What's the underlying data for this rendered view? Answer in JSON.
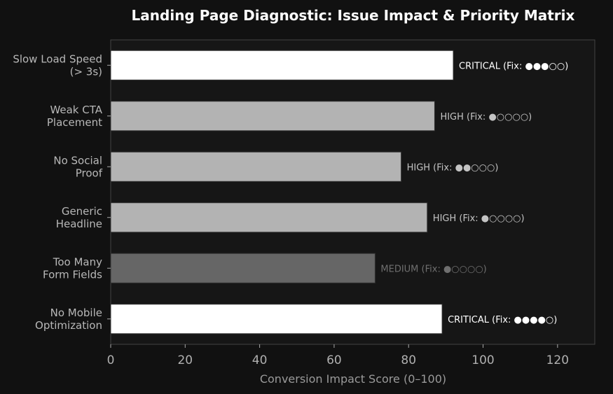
{
  "chart_data": {
    "type": "bar",
    "orientation": "horizontal",
    "title": "Landing Page Diagnostic: Issue Impact & Priority Matrix",
    "xlabel": "Conversion Impact Score (0–100)",
    "xlim": [
      0,
      130
    ],
    "xticks": [
      0,
      20,
      40,
      60,
      80,
      100,
      120
    ],
    "grid": false,
    "categories": [
      [
        "Slow Load Speed",
        "(> 3s)"
      ],
      [
        "Weak CTA",
        "Placement"
      ],
      [
        "No Social",
        "Proof"
      ],
      [
        "Generic",
        "Headline"
      ],
      [
        "Too Many",
        "Form Fields"
      ],
      [
        "No Mobile",
        "Optimization"
      ]
    ],
    "values": [
      92,
      87,
      78,
      85,
      71,
      89
    ],
    "priority": [
      "CRITICAL",
      "HIGH",
      "HIGH",
      "HIGH",
      "MEDIUM",
      "CRITICAL"
    ],
    "fix_effort": [
      3,
      1,
      2,
      1,
      1,
      4
    ],
    "fix_max": 5,
    "bar_labels": [
      "CRITICAL  (Fix: ●●●○○)",
      "HIGH  (Fix: ●○○○○)",
      "HIGH  (Fix: ●●○○○)",
      "HIGH  (Fix: ●○○○○)",
      "MEDIUM  (Fix: ●○○○○)",
      "CRITICAL  (Fix: ●●●●○)"
    ],
    "priority_colors": {
      "CRITICAL": "#ffffff",
      "HIGH": "#b3b3b3",
      "MEDIUM": "#666666"
    },
    "label_colors": {
      "CRITICAL": "#ffffff",
      "HIGH": "#c4c4c4",
      "MEDIUM": "#6f6f6f"
    }
  },
  "colors": {
    "background": "#111111",
    "axes_face": "#161616",
    "spine": "#444444",
    "bar_edge": "#333333"
  }
}
